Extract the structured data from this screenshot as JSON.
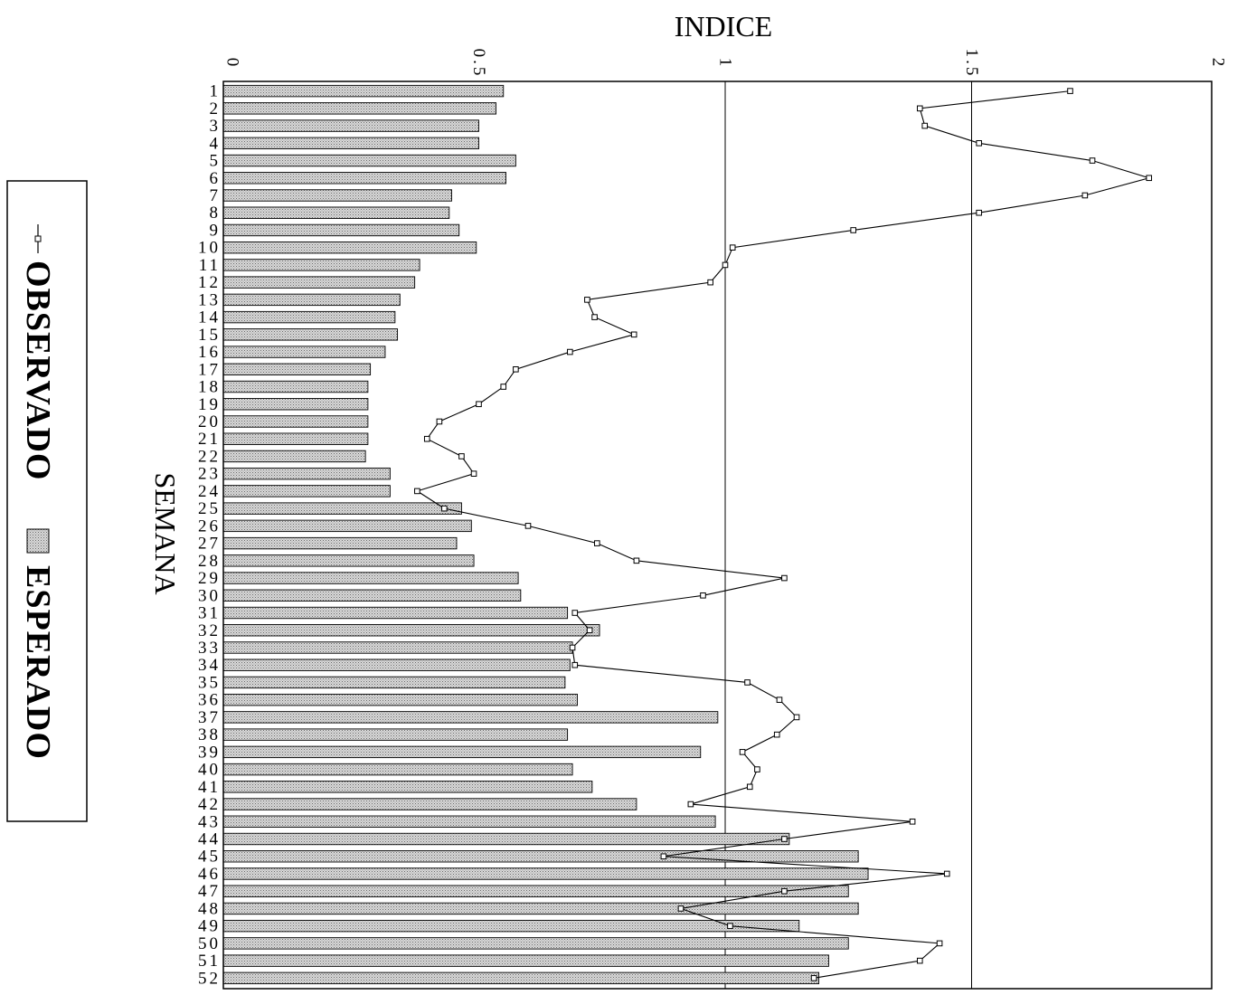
{
  "chart_data": {
    "type": "bar",
    "orientation": "horizontal",
    "categories": [
      "1",
      "2",
      "3",
      "4",
      "5",
      "6",
      "7",
      "8",
      "9",
      "10",
      "11",
      "12",
      "13",
      "14",
      "15",
      "16",
      "17",
      "18",
      "19",
      "20",
      "21",
      "22",
      "23",
      "24",
      "25",
      "26",
      "27",
      "28",
      "29",
      "30",
      "31",
      "32",
      "33",
      "34",
      "35",
      "36",
      "37",
      "38",
      "39",
      "40",
      "41",
      "42",
      "43",
      "44",
      "45",
      "46",
      "47",
      "48",
      "49",
      "50",
      "51",
      "52"
    ],
    "series": [
      {
        "name": "ESPERADO",
        "type": "bar",
        "values": [
          0.55,
          0.535,
          0.5,
          0.5,
          0.575,
          0.555,
          0.445,
          0.44,
          0.46,
          0.495,
          0.38,
          0.37,
          0.34,
          0.33,
          0.335,
          0.31,
          0.28,
          0.275,
          0.275,
          0.275,
          0.275,
          0.27,
          0.32,
          0.32,
          0.465,
          0.485,
          0.455,
          0.49,
          0.58,
          0.585,
          0.68,
          0.745,
          0.69,
          0.685,
          0.675,
          0.7,
          0.985,
          0.68,
          0.95,
          0.69,
          0.73,
          0.82,
          0.98,
          1.13,
          1.27,
          1.29,
          1.25,
          1.27,
          1.15,
          1.25,
          1.21,
          1.19
        ]
      },
      {
        "name": "OBSERVADO",
        "type": "line",
        "values": [
          1.7,
          1.395,
          1.405,
          1.515,
          1.745,
          1.86,
          1.73,
          1.515,
          1.26,
          1.015,
          1.0,
          0.97,
          0.72,
          0.735,
          0.815,
          0.685,
          0.575,
          0.55,
          0.5,
          0.42,
          0.395,
          0.465,
          0.49,
          0.375,
          0.43,
          0.6,
          0.74,
          0.82,
          1.12,
          0.955,
          0.695,
          0.725,
          0.69,
          0.695,
          1.045,
          1.11,
          1.145,
          1.105,
          1.035,
          1.065,
          1.05,
          0.93,
          1.38,
          1.12,
          0.875,
          1.45,
          1.12,
          0.91,
          1.01,
          1.435,
          1.395,
          1.18
        ]
      }
    ],
    "xlabel": "SEMANA",
    "ylabel": "INDICE",
    "ylim": [
      0,
      2
    ],
    "yticks": [
      0,
      0.5,
      1,
      1.5,
      2
    ],
    "ytick_labels": [
      "0",
      "0.5",
      "1",
      "1.5",
      "2"
    ],
    "grid": "vertical lines at 1 and 1.5",
    "rotation": "rotated 90 degrees clockwise",
    "legend_position": "left",
    "legend": [
      "OBSERVADO",
      "ESPERADO"
    ],
    "colors": {
      "bar_fill": "#c6c6c6",
      "line": "#000000",
      "background": "#ffffff"
    }
  }
}
